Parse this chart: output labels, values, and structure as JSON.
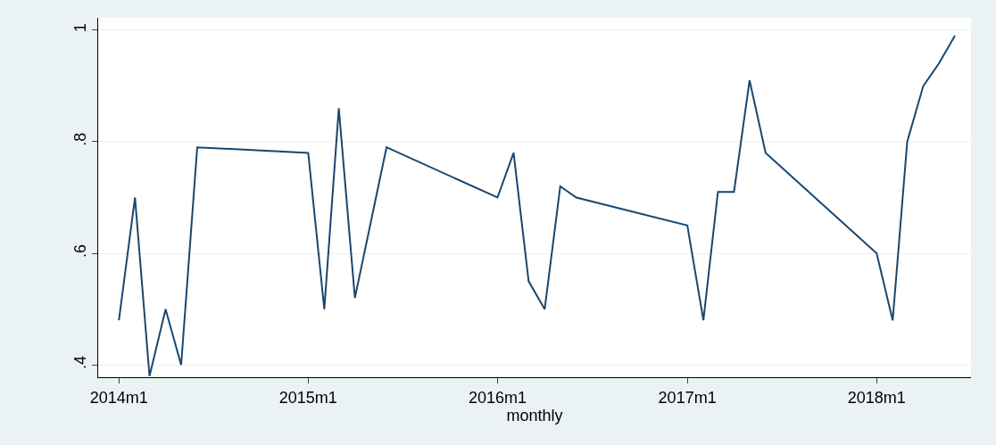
{
  "chart_data": {
    "type": "line",
    "xlabel": "monthly",
    "x": [
      "2014-01",
      "2014-02",
      "2014-03",
      "2014-04",
      "2014-05",
      "2014-06",
      "2015-01",
      "2015-02",
      "2015-03",
      "2015-04",
      "2015-06",
      "2016-01",
      "2016-02",
      "2016-03",
      "2016-04",
      "2016-05",
      "2016-06",
      "2017-01",
      "2017-02",
      "2017-03",
      "2017-04",
      "2017-05",
      "2017-06",
      "2018-01",
      "2018-02",
      "2018-03",
      "2018-04",
      "2018-05",
      "2018-06"
    ],
    "series": [
      {
        "color": "#1a476f",
        "values": [
          0.48,
          0.7,
          0.38,
          0.5,
          0.4,
          0.79,
          0.78,
          0.5,
          0.86,
          0.52,
          0.79,
          0.7,
          0.78,
          0.55,
          0.5,
          0.72,
          0.7,
          0.65,
          0.48,
          0.71,
          0.71,
          0.91,
          0.78,
          0.6,
          0.48,
          0.8,
          0.9,
          0.94,
          0.99
        ]
      }
    ],
    "xlim": [
      "2013-11-22",
      "2018-07-02"
    ],
    "xticks": [
      {
        "value": "2014-01",
        "label": "2014m1"
      },
      {
        "value": "2015-01",
        "label": "2015m1"
      },
      {
        "value": "2016-01",
        "label": "2016m1"
      },
      {
        "value": "2017-01",
        "label": "2017m1"
      },
      {
        "value": "2018-01",
        "label": "2018m1"
      }
    ],
    "ylim": [
      0.378,
      1.022
    ],
    "yticks": [
      {
        "value": 0.4,
        "label": ".4"
      },
      {
        "value": 0.6,
        "label": ".6"
      },
      {
        "value": 0.8,
        "label": ".8"
      },
      {
        "value": 1,
        "label": "1"
      }
    ],
    "grid": "y",
    "line_style": "solid",
    "marker": "none"
  }
}
